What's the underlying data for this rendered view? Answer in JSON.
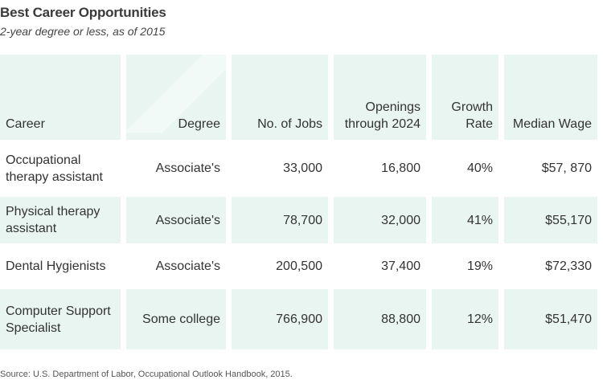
{
  "title": "Best Career Opportunities",
  "subtitle": "2-year degree or less, as of 2015",
  "table": {
    "headers": [
      {
        "label": "Career"
      },
      {
        "label": "Degree"
      },
      {
        "label": "No. of Jobs"
      },
      {
        "label": "Openings through 2024"
      },
      {
        "label": "Growth Rate"
      },
      {
        "label": "Median Wage"
      }
    ],
    "rows": [
      {
        "career": "Occupational therapy assistant",
        "degree": "Associate's",
        "jobs": "33,000",
        "openings": "16,800",
        "growth": "40%",
        "wage": "$57, 870"
      },
      {
        "career": "Physical therapy assistant",
        "degree": "Associate's",
        "jobs": "78,700",
        "openings": "32,000",
        "growth": "41%",
        "wage": "$55,170"
      },
      {
        "career": "Dental Hygienists",
        "degree": "Associate's",
        "jobs": "200,500",
        "openings": "37,400",
        "growth": "19%",
        "wage": "$72,330"
      },
      {
        "career": "Computer Support Specialist",
        "degree": "Some college",
        "jobs": "766,900",
        "openings": "88,800",
        "growth": "12%",
        "wage": "$51,470"
      }
    ]
  },
  "source": "Source: U.S. Department of Labor, Occupational Outlook Handbook, 2015.",
  "colors": {
    "header_bg": "#e8f5f1",
    "stripe_bg": "#e8f5f1",
    "text": "#333333"
  }
}
